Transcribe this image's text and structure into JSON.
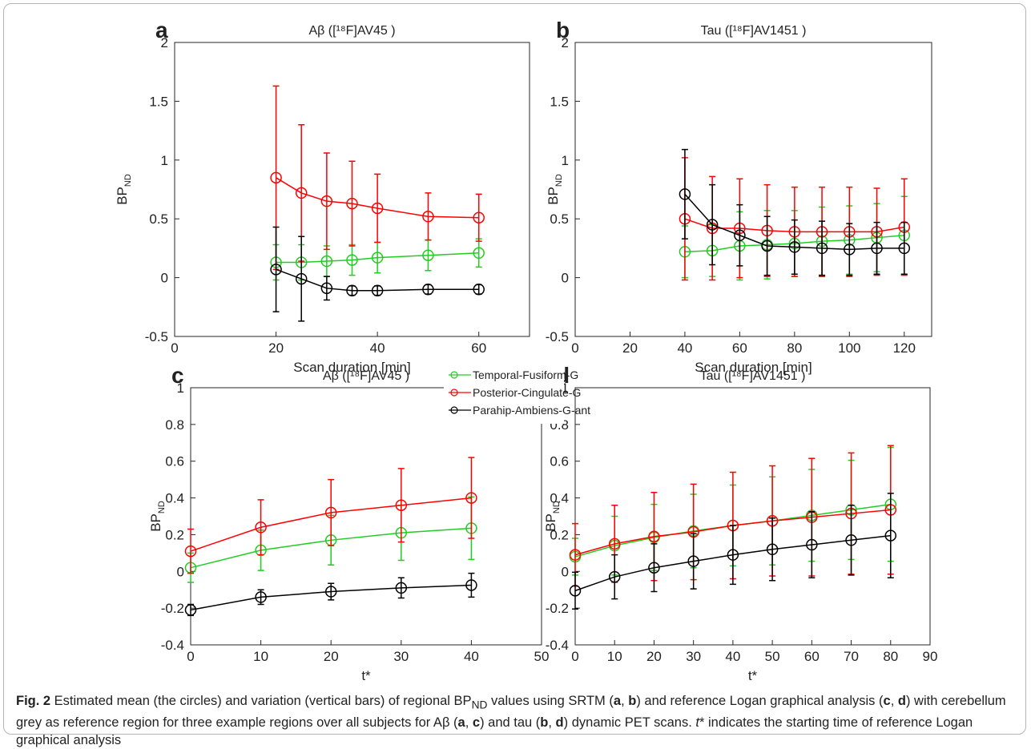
{
  "chart_data": [
    {
      "type": "line",
      "panel_label": "a",
      "title": "Aβ ([¹⁸F]AV45 )",
      "x_label": "Scan duration [min]",
      "y_label": {
        "text": "BP",
        "subscript": "ND"
      },
      "x": [
        20,
        25,
        30,
        35,
        40,
        50,
        60
      ],
      "xlim": [
        0,
        70
      ],
      "xticks": [
        0,
        20,
        40,
        60
      ],
      "ylim": [
        -0.5,
        2
      ],
      "yticks": [
        -0.5,
        0,
        0.5,
        1,
        1.5,
        2
      ],
      "series": [
        {
          "name": "Temporal-Fusiform-G",
          "color": "#22cc22",
          "values": [
            0.13,
            0.13,
            0.14,
            0.15,
            0.17,
            0.19,
            0.21
          ],
          "errors": [
            0.15,
            0.15,
            0.13,
            0.13,
            0.13,
            0.13,
            0.12
          ]
        },
        {
          "name": "Posterior-Cingulate-G",
          "color": "#ff0000",
          "values": [
            0.85,
            0.72,
            0.65,
            0.63,
            0.59,
            0.52,
            0.51
          ],
          "errors": [
            0.78,
            0.58,
            0.41,
            0.36,
            0.29,
            0.2,
            0.2
          ]
        },
        {
          "name": "Parahip-Ambiens-G-ant",
          "color": "#000000",
          "values": [
            0.07,
            -0.01,
            -0.09,
            -0.11,
            -0.11,
            -0.1,
            -0.1
          ],
          "errors": [
            0.36,
            0.36,
            0.1,
            0.04,
            0.04,
            0.04,
            0.04
          ]
        }
      ]
    },
    {
      "type": "line",
      "panel_label": "b",
      "title": "Tau ([¹⁸F]AV1451 )",
      "x_label": "Scan duration [min]",
      "y_label": {
        "text": "BP",
        "subscript": "ND"
      },
      "x": [
        40,
        50,
        60,
        70,
        80,
        90,
        100,
        110,
        120
      ],
      "xlim": [
        0,
        130
      ],
      "xticks": [
        0,
        20,
        40,
        60,
        80,
        100,
        120
      ],
      "ylim": [
        -0.5,
        2
      ],
      "yticks": [
        -0.5,
        0,
        0.5,
        1,
        1.5,
        2
      ],
      "series": [
        {
          "color": "#22cc22",
          "values": [
            0.22,
            0.23,
            0.27,
            0.28,
            0.29,
            0.31,
            0.32,
            0.34,
            0.36
          ],
          "errors": [
            0.22,
            0.22,
            0.29,
            0.29,
            0.28,
            0.29,
            0.29,
            0.29,
            0.33
          ]
        },
        {
          "color": "#ff0000",
          "values": [
            0.5,
            0.42,
            0.42,
            0.4,
            0.39,
            0.39,
            0.39,
            0.39,
            0.43
          ],
          "errors": [
            0.52,
            0.44,
            0.42,
            0.39,
            0.38,
            0.38,
            0.38,
            0.37,
            0.41
          ]
        },
        {
          "color": "#000000",
          "values": [
            0.71,
            0.45,
            0.36,
            0.27,
            0.26,
            0.25,
            0.24,
            0.25,
            0.25
          ],
          "errors": [
            0.38,
            0.34,
            0.26,
            0.25,
            0.23,
            0.23,
            0.22,
            0.22,
            0.22
          ]
        }
      ]
    },
    {
      "type": "line",
      "panel_label": "c",
      "title": "Aβ ([¹⁸F]AV45 )",
      "x_label": "t*",
      "y_label": {
        "text": "BP",
        "subscript": "ND"
      },
      "x": [
        0,
        10,
        20,
        30,
        40
      ],
      "xlim": [
        0,
        50
      ],
      "xticks": [
        0,
        10,
        20,
        30,
        40,
        50
      ],
      "ylim": [
        -0.4,
        1
      ],
      "yticks": [
        -0.4,
        -0.2,
        0,
        0.2,
        0.4,
        0.6,
        0.8,
        1
      ],
      "series": [
        {
          "color": "#22cc22",
          "values": [
            0.02,
            0.115,
            0.17,
            0.21,
            0.235
          ],
          "errors": [
            0.08,
            0.11,
            0.135,
            0.15,
            0.17
          ]
        },
        {
          "color": "#ff0000",
          "values": [
            0.11,
            0.24,
            0.32,
            0.36,
            0.4
          ],
          "errors": [
            0.12,
            0.15,
            0.18,
            0.2,
            0.22
          ]
        },
        {
          "color": "#000000",
          "values": [
            -0.21,
            -0.14,
            -0.11,
            -0.09,
            -0.075
          ],
          "errors": [
            0.03,
            0.04,
            0.045,
            0.055,
            0.065
          ]
        }
      ]
    },
    {
      "type": "line",
      "panel_label": "d",
      "title": "Tau ([¹⁸F]AV1451 )",
      "x_label": "t*",
      "y_label": {
        "text": "BP",
        "subscript": "ND"
      },
      "x": [
        0,
        10,
        20,
        30,
        40,
        50,
        60,
        70,
        80
      ],
      "xlim": [
        0,
        90
      ],
      "xticks": [
        0,
        10,
        20,
        30,
        40,
        50,
        60,
        70,
        80,
        90
      ],
      "ylim": [
        -0.4,
        1
      ],
      "yticks": [
        -0.4,
        -0.2,
        0,
        0.2,
        0.4,
        0.6,
        0.8,
        1
      ],
      "series": [
        {
          "color": "#22cc22",
          "values": [
            0.08,
            0.14,
            0.185,
            0.22,
            0.25,
            0.275,
            0.305,
            0.335,
            0.365
          ],
          "errors": [
            0.1,
            0.16,
            0.18,
            0.2,
            0.22,
            0.24,
            0.25,
            0.27,
            0.31
          ]
        },
        {
          "color": "#ff0000",
          "values": [
            0.09,
            0.15,
            0.19,
            0.215,
            0.25,
            0.275,
            0.295,
            0.315,
            0.335
          ],
          "errors": [
            0.17,
            0.21,
            0.24,
            0.26,
            0.29,
            0.3,
            0.32,
            0.33,
            0.35
          ]
        },
        {
          "color": "#000000",
          "values": [
            -0.105,
            -0.03,
            0.02,
            0.055,
            0.09,
            0.12,
            0.145,
            0.17,
            0.195
          ],
          "errors": [
            0.1,
            0.12,
            0.13,
            0.15,
            0.16,
            0.17,
            0.18,
            0.19,
            0.23
          ]
        }
      ]
    }
  ],
  "caption": [
    {
      "text": "Fig. 2",
      "style": "bold"
    },
    {
      "text": " Estimated mean (the circles) and variation (vertical bars) of regional BP",
      "style": "normal"
    },
    {
      "text": "ND",
      "style": "sub"
    },
    {
      "text": " values using SRTM (",
      "style": "normal"
    },
    {
      "text": "a",
      "style": "bold"
    },
    {
      "text": ", ",
      "style": "normal"
    },
    {
      "text": "b",
      "style": "bold"
    },
    {
      "text": ") and reference Logan graphical analysis (",
      "style": "normal"
    },
    {
      "text": "c",
      "style": "bold"
    },
    {
      "text": ", ",
      "style": "normal"
    },
    {
      "text": "d",
      "style": "bold"
    },
    {
      "text": ") with cerebellum grey as reference region for three example regions over all subjects for Aβ (",
      "style": "normal"
    },
    {
      "text": "a",
      "style": "bold"
    },
    {
      "text": ", ",
      "style": "normal"
    },
    {
      "text": "c",
      "style": "bold"
    },
    {
      "text": ") and tau (",
      "style": "normal"
    },
    {
      "text": "b",
      "style": "bold"
    },
    {
      "text": ", ",
      "style": "normal"
    },
    {
      "text": "d",
      "style": "bold"
    },
    {
      "text": ") dynamic PET scans. ",
      "style": "normal"
    },
    {
      "text": "t",
      "style": "italic"
    },
    {
      "text": "* indicates the starting time of reference Logan graphical analysis",
      "style": "normal"
    }
  ]
}
